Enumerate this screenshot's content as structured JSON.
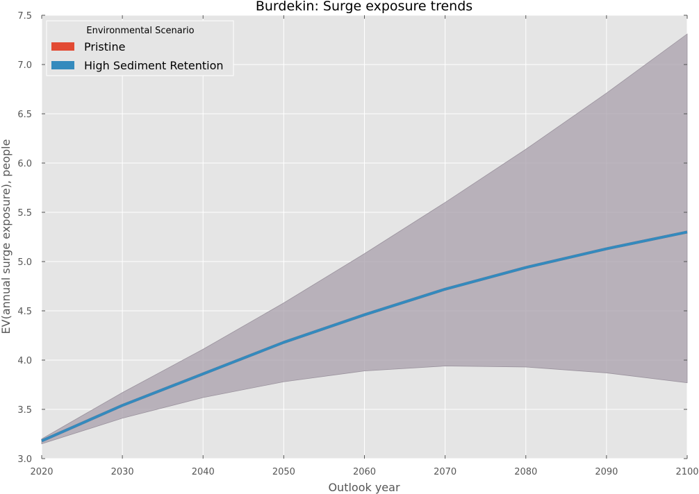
{
  "chart_data": {
    "type": "area",
    "title": "Burdekin: Surge exposure trends",
    "xlabel": "Outlook year",
    "ylabel": "EV(annual surge exposure), people",
    "xlim": [
      2020,
      2100
    ],
    "ylim": [
      3.0,
      7.5
    ],
    "xticks": [
      2020,
      2030,
      2040,
      2050,
      2060,
      2070,
      2080,
      2090,
      2100
    ],
    "yticks": [
      3.0,
      3.5,
      4.0,
      4.5,
      5.0,
      5.5,
      6.0,
      6.5,
      7.0,
      7.5
    ],
    "grid": true,
    "legend": {
      "title": "Environmental Scenario",
      "position": "top-left",
      "entries": [
        {
          "label": "Pristine",
          "color": "#e24a33"
        },
        {
          "label": "High Sediment Retention",
          "color": "#348abd"
        }
      ]
    },
    "x": [
      2020,
      2030,
      2040,
      2050,
      2060,
      2070,
      2080,
      2090,
      2100
    ],
    "series": [
      {
        "name": "Pristine",
        "color": "#e24a33",
        "mean": [
          3.18,
          3.54,
          3.86,
          4.18,
          4.46,
          4.72,
          4.94,
          5.13,
          5.3
        ],
        "lower": [
          3.15,
          3.41,
          3.62,
          3.78,
          3.89,
          3.94,
          3.93,
          3.87,
          3.77
        ],
        "upper": [
          3.2,
          3.67,
          4.11,
          4.58,
          5.08,
          5.6,
          6.14,
          6.71,
          7.31
        ]
      },
      {
        "name": "High Sediment Retention",
        "color": "#348abd",
        "mean": [
          3.18,
          3.54,
          3.86,
          4.18,
          4.46,
          4.72,
          4.94,
          5.13,
          5.3
        ],
        "lower": [
          3.15,
          3.41,
          3.62,
          3.78,
          3.89,
          3.94,
          3.93,
          3.87,
          3.77
        ],
        "upper": [
          3.2,
          3.67,
          4.11,
          4.58,
          5.08,
          5.6,
          6.14,
          6.71,
          7.31
        ]
      }
    ]
  },
  "style": {
    "axes_bg": "#e5e5e5",
    "grid_color": "#ffffff",
    "band_color": "#a89fab",
    "text_color": "#555555",
    "title_color": "#000000"
  }
}
